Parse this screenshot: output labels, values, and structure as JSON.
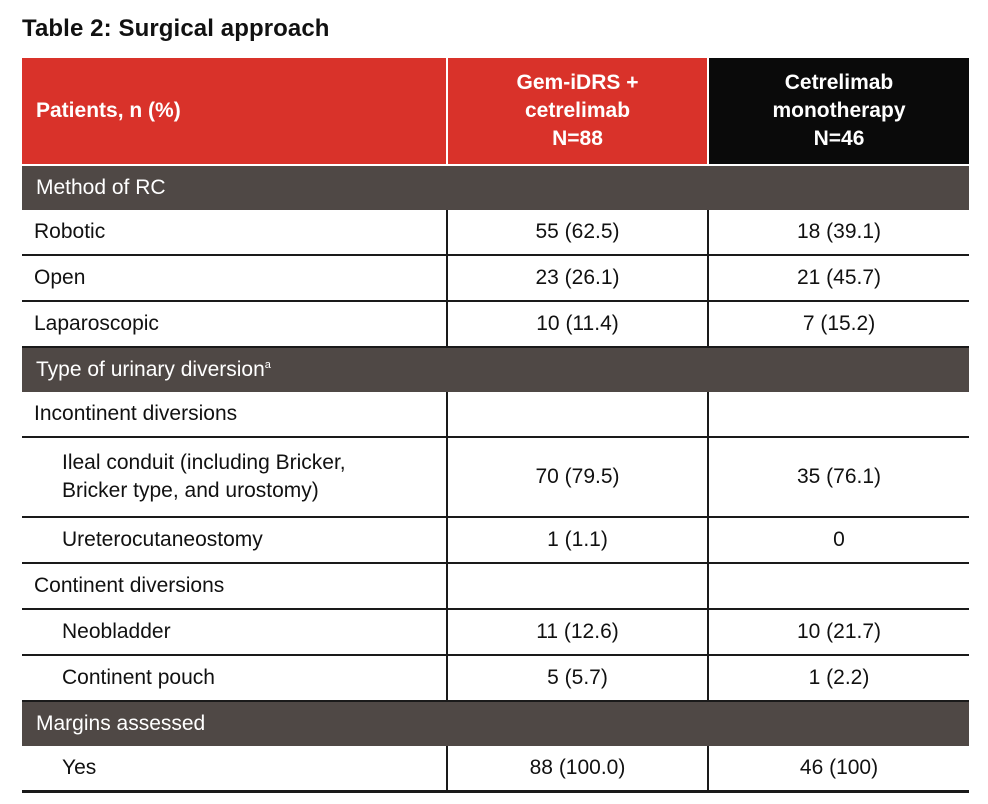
{
  "title": "Table 2: Surgical approach",
  "header": {
    "col1": "Patients, n (%)",
    "col2": [
      "Gem-iDRS +",
      "cetrelimab",
      "N=88"
    ],
    "col3": [
      "Cetrelimab",
      "monotherapy",
      "N=46"
    ]
  },
  "sections": [
    {
      "label": "Method of RC",
      "sup": "",
      "rows": [
        {
          "label": "Robotic",
          "v1": "55 (62.5)",
          "v2": "18 (39.1)"
        },
        {
          "label": "Open",
          "v1": "23 (26.1)",
          "v2": "21 (45.7)"
        },
        {
          "label": "Laparoscopic",
          "v1": "10 (11.4)",
          "v2": "7 (15.2)"
        }
      ]
    },
    {
      "label": "Type of urinary diversion",
      "sup": "a",
      "rows": [
        {
          "label": "Incontinent diversions",
          "v1": "",
          "v2": ""
        },
        {
          "label": "Ileal conduit (including Bricker, Bricker type, and urostomy)",
          "label_lines": [
            "Ileal conduit (including Bricker,",
            "Bricker type, and urostomy)"
          ],
          "v1": "70 (79.5)",
          "v2": "35 (76.1)"
        },
        {
          "label": "Ureterocutaneostomy",
          "v1": "1 (1.1)",
          "v2": "0"
        },
        {
          "label": "Continent diversions",
          "v1": "",
          "v2": ""
        },
        {
          "label": "Neobladder",
          "v1": "11 (12.6)",
          "v2": "10 (21.7)"
        },
        {
          "label": "Continent pouch",
          "v1": "5 (5.7)",
          "v2": "1 (2.2)"
        }
      ]
    },
    {
      "label": "Margins assessed",
      "sup": "",
      "rows": [
        {
          "label": "Yes",
          "v1": "88 (100.0)",
          "v2": "46 (100)"
        }
      ]
    }
  ],
  "colors": {
    "header_red": "#d9322a",
    "header_black": "#0a0a0a",
    "section_gray": "#4f4845"
  }
}
